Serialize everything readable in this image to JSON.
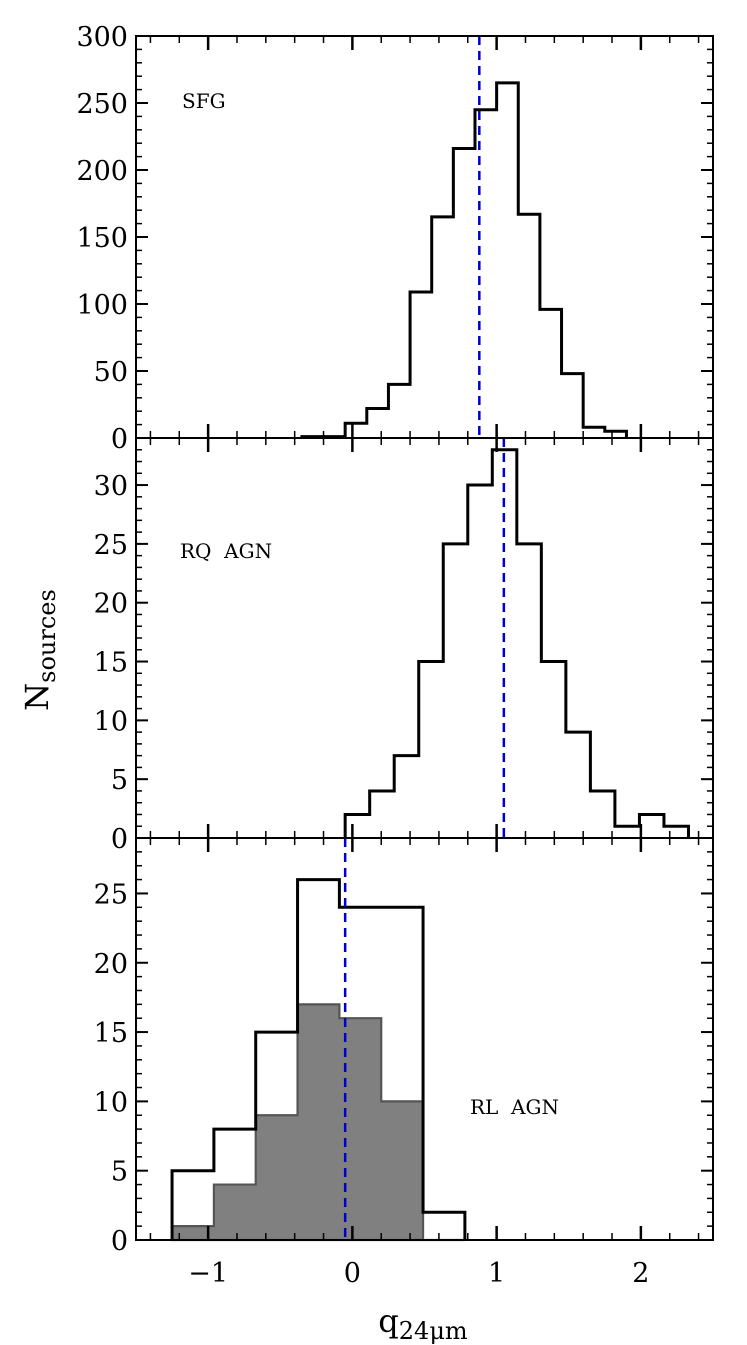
{
  "chart_data": [
    {
      "type": "histogram",
      "label": "SFG",
      "xlim": [
        -1.5,
        2.5
      ],
      "ylim": [
        0,
        300
      ],
      "yticks": [
        0,
        50,
        100,
        150,
        200,
        250,
        300
      ],
      "bin_edges": [
        -0.35,
        -0.2,
        -0.05,
        0.1,
        0.25,
        0.4,
        0.55,
        0.7,
        0.85,
        1.0,
        1.15,
        1.3,
        1.45,
        1.6,
        1.75,
        1.9
      ],
      "series": [
        {
          "fill": false,
          "values": [
            1,
            1,
            11,
            22,
            40,
            109,
            165,
            216,
            245,
            265,
            167,
            96,
            48,
            8,
            5
          ]
        }
      ],
      "median_line": 0.88,
      "line_color": "#0000cc"
    },
    {
      "type": "histogram",
      "label": "RQ  AGN",
      "xlim": [
        -1.5,
        2.5
      ],
      "ylim": [
        0,
        34
      ],
      "yticks": [
        0,
        5,
        10,
        15,
        20,
        25,
        30
      ],
      "bin_edges": [
        -0.05,
        0.12,
        0.29,
        0.46,
        0.63,
        0.8,
        0.97,
        1.14,
        1.31,
        1.48,
        1.65,
        1.82,
        1.99,
        2.16,
        2.33
      ],
      "series": [
        {
          "fill": false,
          "values": [
            2,
            4,
            7,
            15,
            25,
            30,
            33,
            25,
            15,
            9,
            4,
            1,
            2,
            1
          ]
        }
      ],
      "median_line": 1.05,
      "line_color": "#0000cc"
    },
    {
      "type": "histogram",
      "label": "RL  AGN",
      "xlim": [
        -1.5,
        2.5
      ],
      "ylim": [
        0,
        29
      ],
      "yticks": [
        0,
        5,
        10,
        15,
        20,
        25
      ],
      "xticks": [
        -1,
        0,
        1,
        2
      ],
      "xlabel": "q",
      "xlabel_sub": "24μm",
      "ylabel": "N",
      "ylabel_sub": "sources",
      "bin_edges": [
        -1.25,
        -0.96,
        -0.67,
        -0.38,
        -0.09,
        0.2,
        0.49,
        0.78
      ],
      "series": [
        {
          "fill": false,
          "values": [
            5,
            8,
            15,
            26,
            24,
            24,
            2
          ]
        },
        {
          "fill": true,
          "fill_color": "#808080",
          "values": [
            1,
            4,
            9,
            17,
            16,
            10,
            0
          ]
        }
      ],
      "median_line": -0.05,
      "line_color": "#0000cc"
    }
  ]
}
